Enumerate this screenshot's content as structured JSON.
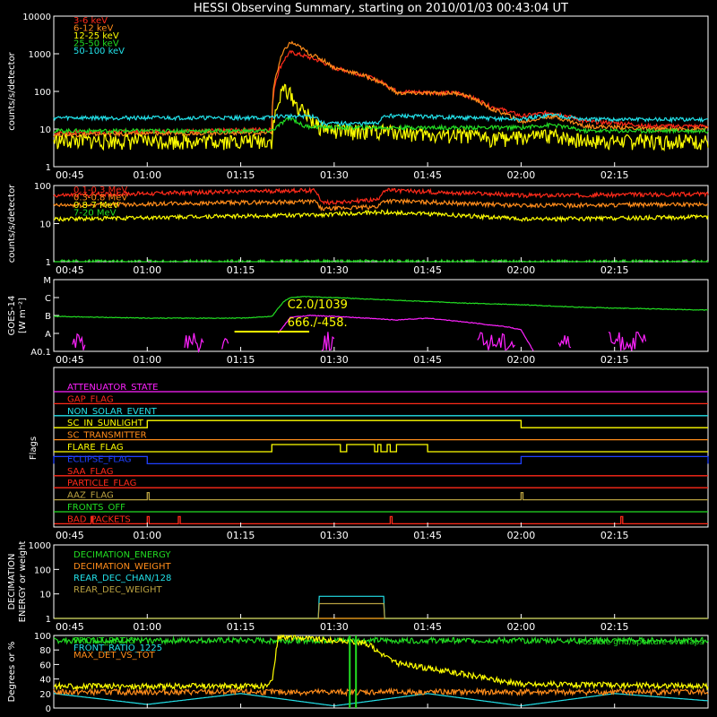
{
  "title": "HESSI Observing Summary, starting on 2010/01/03 00:43:04 UT",
  "time_ticks": [
    "00:45",
    "01:00",
    "01:15",
    "01:30",
    "01:45",
    "02:00",
    "02:15"
  ],
  "colors": {
    "red": "#ff2a1a",
    "orange": "#ff8c1a",
    "yellow": "#ffff00",
    "green": "#22dd22",
    "cyan": "#22e0e8",
    "magenta": "#ff22ff",
    "blue": "#2040ff",
    "olive": "#b8a040",
    "white": "#ffffff"
  },
  "chart_data": [
    {
      "id": "lo",
      "type": "line",
      "ylabel": "counts/s/detector",
      "yscale": "log",
      "ylim": [
        1,
        10000
      ],
      "ytick_labels": [
        "1",
        "10",
        "100",
        "1000",
        "10000"
      ],
      "series": [
        {
          "name": "3-6 keV",
          "color": "red",
          "x": [
            45,
            70,
            80,
            81,
            83,
            86,
            90,
            100,
            110,
            115,
            120,
            125,
            130,
            137,
            140,
            150
          ],
          "y": [
            8,
            9,
            10,
            300,
            1100,
            800,
            420,
            100,
            90,
            40,
            22,
            28,
            16,
            14,
            12,
            12
          ]
        },
        {
          "name": "6-12 keV",
          "color": "orange",
          "x": [
            45,
            70,
            80,
            81,
            83,
            86,
            90,
            100,
            110,
            115,
            120,
            125,
            130,
            137,
            140,
            150
          ],
          "y": [
            7,
            8,
            8,
            400,
            2000,
            1000,
            420,
            90,
            90,
            35,
            15,
            22,
            12,
            11,
            10,
            10
          ]
        },
        {
          "name": "12-25 keV",
          "color": "yellow",
          "x": [
            45,
            70,
            80,
            81,
            82,
            84,
            87,
            90,
            100,
            105,
            110,
            115,
            120,
            125,
            130,
            150
          ],
          "y": [
            5,
            5,
            5,
            40,
            130,
            40,
            13,
            9,
            9,
            7,
            7,
            6,
            6,
            7,
            5,
            5
          ]
        },
        {
          "name": "25-50 keV",
          "color": "green",
          "x": [
            45,
            80,
            81,
            83,
            85,
            90,
            120,
            125,
            130,
            150
          ],
          "y": [
            9,
            9,
            12,
            20,
            12,
            11,
            11,
            13,
            9,
            9
          ]
        },
        {
          "name": "50-100 keV",
          "color": "cyan",
          "x": [
            45,
            79,
            81,
            84,
            87,
            88,
            97,
            98,
            120,
            125,
            130,
            150
          ],
          "y": [
            20,
            20,
            22,
            22,
            22,
            14,
            14,
            23,
            18,
            24,
            18,
            18
          ]
        }
      ]
    },
    {
      "id": "hi",
      "type": "line",
      "ylabel": "counts/s/detector",
      "yscale": "log",
      "ylim": [
        1,
        100
      ],
      "ytick_labels": [
        "1",
        "10",
        "100"
      ],
      "series": [
        {
          "name": "0.1-0.3 MeV",
          "color": "red",
          "x": [
            45,
            87,
            88,
            97,
            98,
            115,
            120,
            150
          ],
          "y": [
            55,
            75,
            35,
            42,
            75,
            60,
            55,
            60
          ]
        },
        {
          "name": "0.3-0.8 MeV",
          "color": "orange",
          "x": [
            45,
            87,
            88,
            97,
            98,
            115,
            120,
            150
          ],
          "y": [
            30,
            38,
            24,
            28,
            40,
            32,
            30,
            32
          ]
        },
        {
          "name": "0.8-7 MeV",
          "color": "yellow",
          "x": [
            45,
            87,
            88,
            97,
            98,
            115,
            120,
            150
          ],
          "y": [
            13,
            17,
            17,
            20,
            20,
            15,
            13,
            15
          ]
        },
        {
          "name": "7-20 MeV",
          "color": "green",
          "x": [
            45,
            150
          ],
          "y": [
            1,
            1
          ]
        }
      ]
    },
    {
      "id": "goes",
      "type": "line",
      "ylabel": "GOES-14",
      "ylabel2": "[W m⁻²]",
      "yscale": "log",
      "ylim": [
        0,
        4
      ],
      "ytick_labels": [
        "A0.1",
        "A",
        "B",
        "C",
        "M"
      ],
      "annotations": [
        "C2.0/1039",
        "666./-458."
      ],
      "series": [
        {
          "name": "",
          "color": "green",
          "x": [
            45,
            60,
            75,
            80,
            81,
            82,
            83,
            85,
            90,
            100,
            110,
            120,
            130,
            150
          ],
          "y": [
            1.95,
            1.85,
            1.85,
            1.95,
            2.4,
            2.8,
            3.0,
            3.05,
            3.0,
            2.85,
            2.7,
            2.6,
            2.45,
            2.3
          ]
        },
        {
          "name": "",
          "color": "magenta",
          "x": [
            81,
            83,
            86,
            90,
            100,
            105,
            112,
            118,
            120,
            121,
            122
          ],
          "y": [
            1.0,
            1.9,
            2.0,
            1.95,
            1.75,
            1.85,
            1.6,
            1.35,
            1.2,
            0.6,
            0.0
          ]
        }
      ]
    },
    {
      "id": "dec",
      "type": "line",
      "ylabel": "DECIMATION",
      "ylabel2": "ENERGY or weight",
      "yscale": "log",
      "ylim": [
        1,
        1000
      ],
      "ytick_labels": [
        "1",
        "10",
        "100",
        "1000"
      ],
      "series": [
        {
          "name": "DECIMATION_ENERGY",
          "color": "green",
          "x": [
            45,
            150
          ],
          "y": [
            1,
            1
          ]
        },
        {
          "name": "DECIMATION_WEIGHT",
          "color": "orange",
          "x": [
            45,
            150
          ],
          "y": [
            1,
            1
          ]
        },
        {
          "name": "REAR_DEC_CHAN/128",
          "color": "cyan",
          "x": [
            45,
            87.5,
            87.6,
            98,
            98.1,
            150
          ],
          "y": [
            1,
            1,
            8,
            8,
            1,
            1
          ]
        },
        {
          "name": "REAR_DEC_WEIGHT",
          "color": "olive",
          "x": [
            45,
            87.5,
            87.6,
            98,
            98.1,
            150
          ],
          "y": [
            1,
            1,
            4,
            4,
            1,
            1
          ]
        }
      ]
    },
    {
      "id": "misc",
      "type": "line",
      "ylabel": "Degrees or %",
      "yscale": "linear",
      "ylim": [
        0,
        100
      ],
      "ytick_labels": [
        "0",
        "20",
        "40",
        "60",
        "80",
        "100"
      ],
      "note": "Possible grid/aperture overlaps",
      "series": [
        {
          "name": "FRONT_RATIO",
          "color": "green",
          "x": [
            45,
            150
          ],
          "y": [
            93,
            93
          ]
        },
        {
          "name": "FRONT_RATIO_1225",
          "color": "cyan",
          "x": [
            45,
            60,
            75,
            90,
            105,
            120,
            135,
            150
          ],
          "y": [
            20,
            5,
            20,
            3,
            20,
            3,
            20,
            10
          ]
        },
        {
          "name": "MAX_DET_VS_TOT",
          "color": "orange",
          "x": [
            45,
            150
          ],
          "y": [
            22,
            22
          ]
        },
        {
          "name": "",
          "color": "yellow",
          "x": [
            45,
            79,
            80,
            81,
            85,
            87,
            95,
            100,
            105,
            110,
            120,
            150
          ],
          "y": [
            30,
            30,
            35,
            98,
            97,
            95,
            90,
            62,
            55,
            48,
            33,
            30
          ]
        }
      ]
    }
  ],
  "flags": {
    "ylabel": "Flags",
    "rows": [
      {
        "name": "ATTENUATOR_STATE",
        "color": "magenta",
        "on": []
      },
      {
        "name": "GAP_FLAG",
        "color": "red",
        "on": []
      },
      {
        "name": "NON_SOLAR_EVENT",
        "color": "cyan",
        "on": []
      },
      {
        "name": "SC_IN_SUNLIGHT",
        "color": "yellow",
        "on": [
          [
            60,
            120
          ]
        ]
      },
      {
        "name": "SC_TRANSMITTER",
        "color": "orange",
        "on": []
      },
      {
        "name": "FLARE_FLAG",
        "color": "yellow",
        "on": [
          [
            80,
            91
          ],
          [
            92,
            96.5
          ],
          [
            97,
            97.5
          ],
          [
            98.5,
            99
          ],
          [
            100,
            105
          ]
        ]
      },
      {
        "name": "ECLIPSE_FLAG",
        "color": "blue",
        "on": [
          [
            45,
            60
          ],
          [
            120,
            150
          ]
        ]
      },
      {
        "name": "SAA_FLAG",
        "color": "red",
        "on": []
      },
      {
        "name": "PARTICLE_FLAG",
        "color": "red",
        "on": []
      },
      {
        "name": "AAZ_FLAG",
        "color": "olive",
        "on": [
          [
            60,
            60.3
          ],
          [
            120,
            120.3
          ]
        ]
      },
      {
        "name": "FRONTS_OFF",
        "color": "green",
        "on": []
      },
      {
        "name": "BAD_PACKETS",
        "color": "red",
        "on": [
          [
            51,
            51.3
          ],
          [
            60,
            60.3
          ],
          [
            65,
            65.3
          ],
          [
            99,
            99.3
          ],
          [
            136,
            136.3
          ]
        ]
      }
    ]
  }
}
